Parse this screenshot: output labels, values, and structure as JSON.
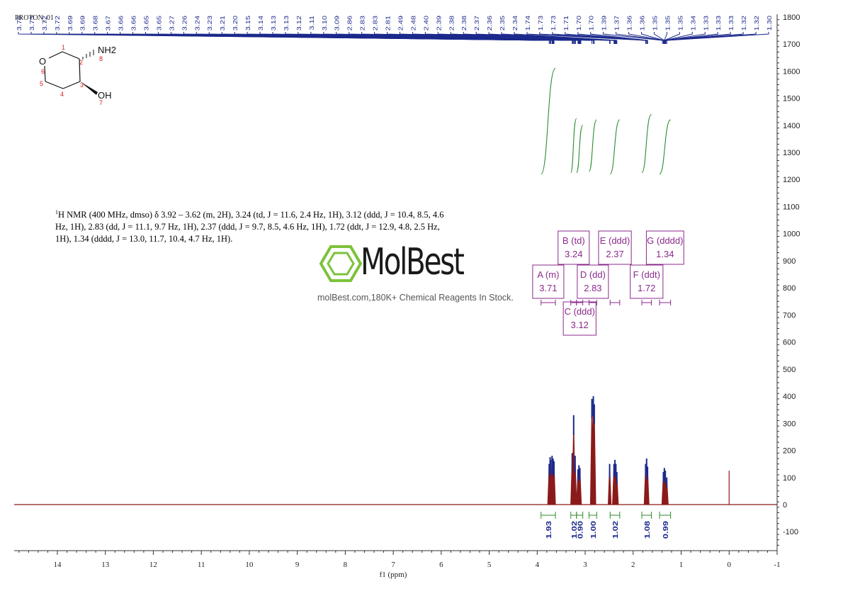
{
  "experiment_name": "PROTON_01",
  "description": {
    "nucleus_sup": "1",
    "text": "H NMR (400 MHz, dmso) δ 3.92 – 3.62 (m, 2H), 3.24 (td, J = 11.6, 2.4 Hz, 1H), 3.12 (ddd, J = 10.4, 8.5, 4.6 Hz, 1H), 2.83 (dd, J = 11.1, 9.7 Hz, 1H), 2.37 (ddd, J = 9.7, 8.5, 4.6 Hz, 1H), 1.72 (ddt, J = 12.9, 4.8, 2.5 Hz, 1H), 1.34 (dddd, J = 13.0, 11.7, 10.4, 4.7 Hz, 1H)."
  },
  "watermark": {
    "logo_text": "MolBest",
    "tagline": "molBest.com,180K+ Chemical Reagents In Stock."
  },
  "molecule": {
    "atom_labels": [
      "O",
      "NH2",
      "OH"
    ],
    "atom_numbers": [
      "1",
      "2",
      "3",
      "4",
      "5",
      "6",
      "7",
      "8"
    ]
  },
  "colors": {
    "spectrum": "#8b1a1a",
    "peak_fill": "#1c2a8c",
    "integral": "#2e8b2e",
    "multiplet_box": "#8b2a8b",
    "axis": "#333333",
    "atom_number": "#d42020"
  },
  "chart_data": {
    "type": "line",
    "xlabel": "f1 (ppm)",
    "xlim": [
      15,
      -1
    ],
    "x_reversed": true,
    "x_ticks": [
      14,
      13,
      12,
      11,
      10,
      9,
      8,
      7,
      6,
      5,
      4,
      3,
      2,
      1,
      0,
      -1
    ],
    "ylim": [
      -150,
      1800
    ],
    "y_ticks": [
      -100,
      0,
      100,
      200,
      300,
      400,
      500,
      600,
      700,
      800,
      900,
      1000,
      1100,
      1200,
      1300,
      1400,
      1500,
      1600,
      1700,
      1800
    ],
    "peak_labels": [
      "3.75",
      "3.73",
      "3.72",
      "3.72",
      "3.69",
      "3.69",
      "3.68",
      "3.67",
      "3.66",
      "3.66",
      "3.65",
      "3.65",
      "3.27",
      "3.26",
      "3.24",
      "3.23",
      "3.21",
      "3.20",
      "3.15",
      "3.14",
      "3.13",
      "3.13",
      "3.12",
      "3.11",
      "3.10",
      "3.09",
      "2.86",
      "2.83",
      "2.83",
      "2.81",
      "2.49",
      "2.48",
      "2.40",
      "2.39",
      "2.38",
      "2.38",
      "2.37",
      "2.36",
      "2.35",
      "2.34",
      "1.74",
      "1.73",
      "1.73",
      "1.71",
      "1.70",
      "1.70",
      "1.39",
      "1.37",
      "1.36",
      "1.36",
      "1.35",
      "1.35",
      "1.35",
      "1.34",
      "1.33",
      "1.33",
      "1.33",
      "1.32",
      "1.32",
      "1.30"
    ],
    "peaks": [
      {
        "ppm": 3.75,
        "height": 150
      },
      {
        "ppm": 3.73,
        "height": 175
      },
      {
        "ppm": 3.72,
        "height": 165
      },
      {
        "ppm": 3.69,
        "height": 180
      },
      {
        "ppm": 3.67,
        "height": 170
      },
      {
        "ppm": 3.65,
        "height": 160
      },
      {
        "ppm": 3.27,
        "height": 190
      },
      {
        "ppm": 3.24,
        "height": 330
      },
      {
        "ppm": 3.21,
        "height": 180
      },
      {
        "ppm": 3.15,
        "height": 130
      },
      {
        "ppm": 3.13,
        "height": 145
      },
      {
        "ppm": 3.11,
        "height": 135
      },
      {
        "ppm": 2.86,
        "height": 390
      },
      {
        "ppm": 2.83,
        "height": 400
      },
      {
        "ppm": 2.81,
        "height": 370
      },
      {
        "ppm": 2.49,
        "height": 150
      },
      {
        "ppm": 2.4,
        "height": 150
      },
      {
        "ppm": 2.38,
        "height": 165
      },
      {
        "ppm": 2.36,
        "height": 150
      },
      {
        "ppm": 2.34,
        "height": 120
      },
      {
        "ppm": 1.74,
        "height": 150
      },
      {
        "ppm": 1.72,
        "height": 170
      },
      {
        "ppm": 1.7,
        "height": 140
      },
      {
        "ppm": 1.37,
        "height": 120
      },
      {
        "ppm": 1.35,
        "height": 135
      },
      {
        "ppm": 1.33,
        "height": 125
      },
      {
        "ppm": 1.3,
        "height": 100
      },
      {
        "ppm": 0.0,
        "height": 125
      }
    ],
    "integrals": [
      {
        "from": 3.92,
        "to": 3.62,
        "value": "1.93",
        "curve_bottom": 1220,
        "curve_top": 1610
      },
      {
        "from": 3.3,
        "to": 3.18,
        "value": "1.02",
        "curve_bottom": 1225,
        "curve_top": 1425
      },
      {
        "from": 3.18,
        "to": 3.05,
        "value": "0.90",
        "curve_bottom": 1225,
        "curve_top": 1400
      },
      {
        "from": 2.92,
        "to": 2.76,
        "value": "1.00",
        "curve_bottom": 1230,
        "curve_top": 1420
      },
      {
        "from": 2.48,
        "to": 2.28,
        "value": "1.02",
        "curve_bottom": 1220,
        "curve_top": 1420
      },
      {
        "from": 1.82,
        "to": 1.62,
        "value": "1.08",
        "curve_bottom": 1225,
        "curve_top": 1440
      },
      {
        "from": 1.45,
        "to": 1.22,
        "value": "0.99",
        "curve_bottom": 1220,
        "curve_top": 1420
      }
    ],
    "multiplets": [
      {
        "label": "A (m)",
        "shift": "3.71",
        "bar_from": 3.92,
        "bar_to": 3.62,
        "row": 1
      },
      {
        "label": "B (td)",
        "shift": "3.24",
        "bar_from": 3.3,
        "bar_to": 3.18,
        "row": 0
      },
      {
        "label": "C (ddd)",
        "shift": "3.12",
        "bar_from": 3.18,
        "bar_to": 3.05,
        "row": 2
      },
      {
        "label": "D (dd)",
        "shift": "2.83",
        "bar_from": 2.92,
        "bar_to": 2.76,
        "row": 1
      },
      {
        "label": "E (ddd)",
        "shift": "2.37",
        "bar_from": 2.48,
        "bar_to": 2.28,
        "row": 0
      },
      {
        "label": "F (ddt)",
        "shift": "1.72",
        "bar_from": 1.82,
        "bar_to": 1.62,
        "row": 1
      },
      {
        "label": "G (dddd)",
        "shift": "1.34",
        "bar_from": 1.45,
        "bar_to": 1.22,
        "row": 0
      }
    ]
  }
}
